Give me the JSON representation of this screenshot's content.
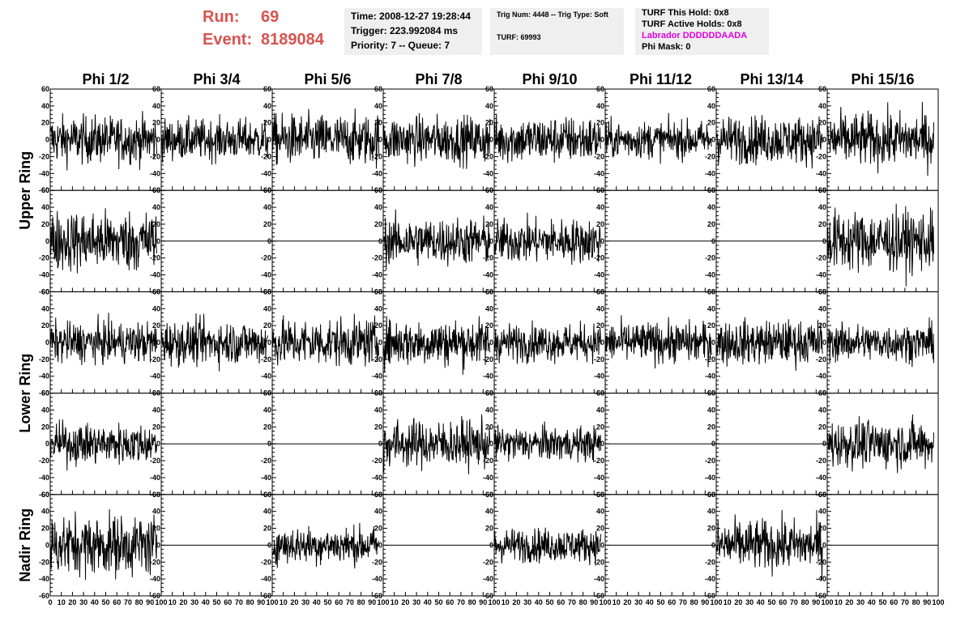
{
  "run": {
    "label": "Run:",
    "value": "69"
  },
  "event": {
    "label": "Event:",
    "value": "8189084"
  },
  "time_box": {
    "time": "Time: 2008-12-27 19:28:44",
    "trigger": "Trigger: 223.992084 ms",
    "priority": "Priority: 7 -- Queue: 7"
  },
  "trig_box": {
    "trig": "Trig Num: 4448 -- Trig Type: Soft",
    "turf": "TURF: 69993"
  },
  "turf_box": {
    "this_hold": "TURF This Hold: 0x8",
    "active_holds": "TURF Active Holds: 0x8",
    "labrador": "Labrador DDDDDDAADA",
    "phi_mask": "Phi Mask: 0"
  },
  "colors": {
    "run_text": "#d9534f",
    "labrador": "#e000e0",
    "info_bg": "#efefef",
    "trace": "#000000"
  },
  "phi_columns": [
    "Phi 1/2",
    "Phi 3/4",
    "Phi 5/6",
    "Phi 7/8",
    "Phi 9/10",
    "Phi 11/12",
    "Phi 13/14",
    "Phi 15/16"
  ],
  "ring_labels": [
    "Upper Ring",
    "Lower Ring",
    "Nadir Ring"
  ],
  "y_ticks": [
    "60",
    "40",
    "20",
    "0",
    "-20",
    "-40",
    "-60"
  ],
  "x_ticks": [
    "0",
    "10",
    "20",
    "30",
    "40",
    "50",
    "60",
    "70",
    "80",
    "90",
    "100"
  ],
  "chart_data": {
    "type": "line",
    "x_range": [
      0,
      100
    ],
    "y_range": [
      -60,
      60
    ],
    "rows": 5,
    "columns": 8,
    "flat_panels": [
      [
        1,
        1
      ],
      [
        1,
        2
      ],
      [
        1,
        5
      ],
      [
        1,
        6
      ],
      [
        3,
        1
      ],
      [
        3,
        2
      ],
      [
        3,
        5
      ],
      [
        3,
        6
      ],
      [
        4,
        1
      ],
      [
        4,
        3
      ],
      [
        4,
        5
      ],
      [
        4,
        7
      ]
    ],
    "amplitude": [
      [
        14,
        12,
        15,
        14,
        14,
        11,
        14,
        16
      ],
      [
        18,
        0,
        0,
        14,
        13,
        0,
        0,
        18
      ],
      [
        12,
        13,
        14,
        14,
        11,
        12,
        13,
        11
      ],
      [
        12,
        0,
        0,
        14,
        10,
        0,
        0,
        14
      ],
      [
        18,
        0,
        11,
        0,
        10,
        0,
        15,
        0
      ]
    ]
  }
}
